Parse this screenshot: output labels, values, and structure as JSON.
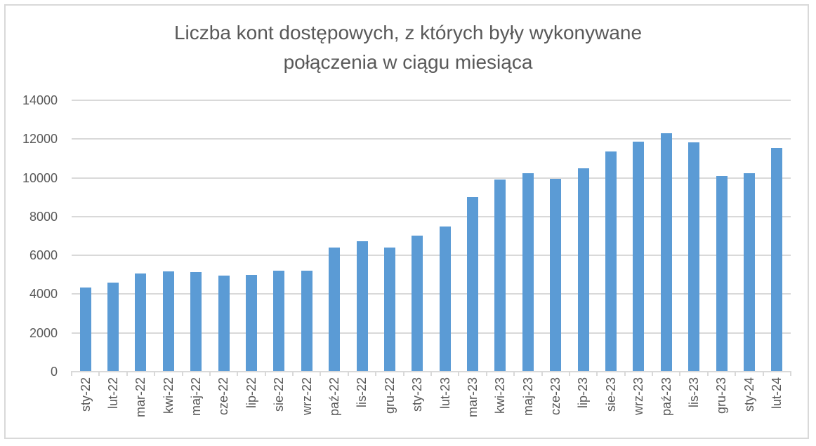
{
  "chart_data": {
    "type": "bar",
    "title": "Liczba kont dostępowych, z których były wykonywane połączenia w ciągu miesiąca",
    "title_lines": [
      "Liczba kont dostępowych, z których były wykonywane",
      "połączenia w ciągu miesiąca"
    ],
    "xlabel": "",
    "ylabel": "",
    "ylim": [
      0,
      14000
    ],
    "yticks": [
      "0",
      "2000",
      "4000",
      "6000",
      "8000",
      "10000",
      "12000",
      "14000"
    ],
    "grid": true,
    "legend": null,
    "bar_color": "#5b9bd5",
    "categories": [
      "sty-22",
      "lut-22",
      "mar-22",
      "kwi-22",
      "maj-22",
      "cze-22",
      "lip-22",
      "sie-22",
      "wrz-22",
      "paź-22",
      "lis-22",
      "gru-22",
      "sty-23",
      "lut-23",
      "mar-23",
      "kwi-23",
      "maj-23",
      "cze-23",
      "lip-23",
      "sie-23",
      "wrz-23",
      "paź-23",
      "lis-23",
      "gru-23",
      "sty-24",
      "lut-24"
    ],
    "values": [
      4340,
      4600,
      5060,
      5170,
      5140,
      4960,
      4990,
      5210,
      5210,
      6400,
      6730,
      6400,
      7020,
      7490,
      9010,
      9920,
      10240,
      9960,
      10500,
      11360,
      11860,
      12300,
      11830,
      10090,
      10240,
      11540
    ]
  }
}
